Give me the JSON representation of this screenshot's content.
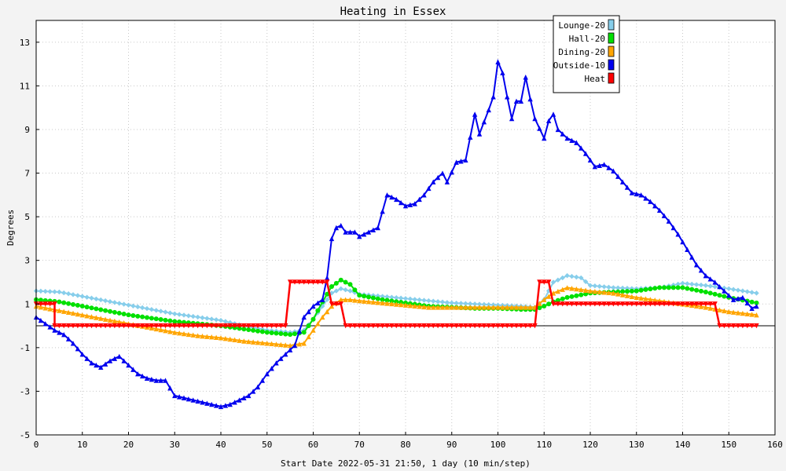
{
  "chart_data": {
    "type": "line",
    "title": "Heating in Essex",
    "xlabel": "Start Date 2022-05-31 21:50, 1 day (10 min/step)",
    "ylabel": "Degrees",
    "xlim": [
      0,
      160
    ],
    "ylim": [
      -5,
      14
    ],
    "x_ticks": [
      0,
      10,
      20,
      30,
      40,
      50,
      60,
      70,
      80,
      90,
      100,
      110,
      120,
      130,
      140,
      150,
      160
    ],
    "y_ticks": [
      -5,
      -3,
      -1,
      1,
      3,
      5,
      7,
      9,
      11,
      13
    ],
    "grid": true,
    "legend_position": "top-right",
    "series": [
      {
        "name": "Lounge-20",
        "color": "#87ceeb",
        "marker": "diamond",
        "points": [
          [
            0,
            1.6
          ],
          [
            5,
            1.55
          ],
          [
            10,
            1.35
          ],
          [
            15,
            1.15
          ],
          [
            20,
            0.95
          ],
          [
            25,
            0.75
          ],
          [
            30,
            0.55
          ],
          [
            35,
            0.4
          ],
          [
            40,
            0.25
          ],
          [
            45,
            0.0
          ],
          [
            50,
            -0.2
          ],
          [
            55,
            -0.3
          ],
          [
            58,
            -0.2
          ],
          [
            60,
            0.3
          ],
          [
            62,
            0.9
          ],
          [
            64,
            1.5
          ],
          [
            66,
            1.7
          ],
          [
            68,
            1.6
          ],
          [
            70,
            1.45
          ],
          [
            75,
            1.35
          ],
          [
            80,
            1.25
          ],
          [
            85,
            1.15
          ],
          [
            90,
            1.05
          ],
          [
            95,
            1.0
          ],
          [
            100,
            0.95
          ],
          [
            105,
            0.9
          ],
          [
            108,
            0.85
          ],
          [
            110,
            1.2
          ],
          [
            112,
            2.0
          ],
          [
            115,
            2.3
          ],
          [
            118,
            2.2
          ],
          [
            120,
            1.85
          ],
          [
            125,
            1.75
          ],
          [
            130,
            1.7
          ],
          [
            135,
            1.75
          ],
          [
            140,
            1.95
          ],
          [
            145,
            1.85
          ],
          [
            150,
            1.7
          ],
          [
            156,
            1.5
          ]
        ]
      },
      {
        "name": "Hall-20",
        "color": "#00e000",
        "marker": "circle",
        "points": [
          [
            0,
            1.2
          ],
          [
            5,
            1.1
          ],
          [
            10,
            0.9
          ],
          [
            15,
            0.7
          ],
          [
            20,
            0.5
          ],
          [
            25,
            0.35
          ],
          [
            30,
            0.2
          ],
          [
            35,
            0.1
          ],
          [
            40,
            0.0
          ],
          [
            45,
            -0.15
          ],
          [
            50,
            -0.3
          ],
          [
            55,
            -0.4
          ],
          [
            58,
            -0.3
          ],
          [
            60,
            0.3
          ],
          [
            62,
            1.1
          ],
          [
            64,
            1.8
          ],
          [
            66,
            2.1
          ],
          [
            68,
            1.9
          ],
          [
            70,
            1.4
          ],
          [
            75,
            1.2
          ],
          [
            80,
            1.05
          ],
          [
            85,
            0.9
          ],
          [
            90,
            0.85
          ],
          [
            95,
            0.8
          ],
          [
            100,
            0.8
          ],
          [
            105,
            0.75
          ],
          [
            108,
            0.75
          ],
          [
            110,
            0.9
          ],
          [
            112,
            1.1
          ],
          [
            115,
            1.3
          ],
          [
            120,
            1.5
          ],
          [
            125,
            1.55
          ],
          [
            130,
            1.6
          ],
          [
            135,
            1.75
          ],
          [
            140,
            1.75
          ],
          [
            145,
            1.55
          ],
          [
            150,
            1.3
          ],
          [
            156,
            1.05
          ]
        ]
      },
      {
        "name": "Dining-20",
        "color": "#ffa500",
        "marker": "triangle",
        "points": [
          [
            0,
            0.9
          ],
          [
            5,
            0.7
          ],
          [
            10,
            0.5
          ],
          [
            15,
            0.3
          ],
          [
            20,
            0.1
          ],
          [
            25,
            -0.1
          ],
          [
            30,
            -0.3
          ],
          [
            35,
            -0.45
          ],
          [
            40,
            -0.55
          ],
          [
            45,
            -0.7
          ],
          [
            50,
            -0.8
          ],
          [
            55,
            -0.9
          ],
          [
            58,
            -0.8
          ],
          [
            60,
            -0.2
          ],
          [
            62,
            0.4
          ],
          [
            64,
            0.9
          ],
          [
            66,
            1.2
          ],
          [
            68,
            1.2
          ],
          [
            70,
            1.15
          ],
          [
            75,
            1.05
          ],
          [
            80,
            0.95
          ],
          [
            85,
            0.85
          ],
          [
            90,
            0.85
          ],
          [
            95,
            0.85
          ],
          [
            100,
            0.85
          ],
          [
            105,
            0.85
          ],
          [
            108,
            0.85
          ],
          [
            110,
            1.2
          ],
          [
            112,
            1.5
          ],
          [
            115,
            1.75
          ],
          [
            120,
            1.6
          ],
          [
            125,
            1.5
          ],
          [
            130,
            1.3
          ],
          [
            135,
            1.15
          ],
          [
            140,
            1.0
          ],
          [
            145,
            0.85
          ],
          [
            150,
            0.65
          ],
          [
            156,
            0.5
          ]
        ]
      },
      {
        "name": "Outside-10",
        "color": "#0000ee",
        "marker": "triangle",
        "points": [
          [
            0,
            0.4
          ],
          [
            2,
            0.1
          ],
          [
            4,
            -0.2
          ],
          [
            6,
            -0.4
          ],
          [
            8,
            -0.8
          ],
          [
            10,
            -1.3
          ],
          [
            12,
            -1.7
          ],
          [
            14,
            -1.9
          ],
          [
            16,
            -1.6
          ],
          [
            18,
            -1.4
          ],
          [
            20,
            -1.8
          ],
          [
            22,
            -2.2
          ],
          [
            24,
            -2.4
          ],
          [
            26,
            -2.5
          ],
          [
            28,
            -2.5
          ],
          [
            30,
            -3.2
          ],
          [
            32,
            -3.3
          ],
          [
            34,
            -3.4
          ],
          [
            36,
            -3.5
          ],
          [
            38,
            -3.6
          ],
          [
            40,
            -3.7
          ],
          [
            42,
            -3.6
          ],
          [
            44,
            -3.4
          ],
          [
            46,
            -3.2
          ],
          [
            48,
            -2.8
          ],
          [
            50,
            -2.2
          ],
          [
            52,
            -1.7
          ],
          [
            54,
            -1.3
          ],
          [
            56,
            -0.9
          ],
          [
            58,
            0.4
          ],
          [
            60,
            0.9
          ],
          [
            62,
            1.2
          ],
          [
            63,
            2.2
          ],
          [
            64,
            4.0
          ],
          [
            65,
            4.5
          ],
          [
            66,
            4.6
          ],
          [
            67,
            4.3
          ],
          [
            69,
            4.3
          ],
          [
            70,
            4.1
          ],
          [
            72,
            4.3
          ],
          [
            74,
            4.5
          ],
          [
            76,
            6.0
          ],
          [
            78,
            5.8
          ],
          [
            80,
            5.5
          ],
          [
            82,
            5.6
          ],
          [
            84,
            6.0
          ],
          [
            86,
            6.6
          ],
          [
            88,
            7.0
          ],
          [
            89,
            6.6
          ],
          [
            91,
            7.5
          ],
          [
            93,
            7.6
          ],
          [
            95,
            9.7
          ],
          [
            96,
            8.8
          ],
          [
            98,
            9.9
          ],
          [
            99,
            10.5
          ],
          [
            100,
            12.1
          ],
          [
            101,
            11.6
          ],
          [
            102,
            10.5
          ],
          [
            103,
            9.5
          ],
          [
            104,
            10.3
          ],
          [
            105,
            10.3
          ],
          [
            106,
            11.4
          ],
          [
            107,
            10.4
          ],
          [
            108,
            9.5
          ],
          [
            110,
            8.6
          ],
          [
            111,
            9.4
          ],
          [
            112,
            9.7
          ],
          [
            113,
            9.0
          ],
          [
            115,
            8.6
          ],
          [
            117,
            8.4
          ],
          [
            119,
            7.9
          ],
          [
            121,
            7.3
          ],
          [
            123,
            7.4
          ],
          [
            125,
            7.1
          ],
          [
            127,
            6.6
          ],
          [
            129,
            6.1
          ],
          [
            131,
            6.0
          ],
          [
            133,
            5.7
          ],
          [
            135,
            5.3
          ],
          [
            137,
            4.8
          ],
          [
            139,
            4.2
          ],
          [
            141,
            3.5
          ],
          [
            143,
            2.8
          ],
          [
            145,
            2.3
          ],
          [
            147,
            2.0
          ],
          [
            149,
            1.6
          ],
          [
            151,
            1.2
          ],
          [
            153,
            1.3
          ],
          [
            155,
            0.8
          ],
          [
            156,
            0.9
          ]
        ]
      },
      {
        "name": "Heat",
        "color": "#ff0000",
        "marker": "triangle-down",
        "points": [
          [
            0,
            1.0
          ],
          [
            4,
            1.0
          ],
          [
            4,
            0.0
          ],
          [
            54,
            0.0
          ],
          [
            55,
            2.0
          ],
          [
            63,
            2.0
          ],
          [
            64,
            1.0
          ],
          [
            66,
            1.0
          ],
          [
            67,
            0.0
          ],
          [
            108,
            0.0
          ],
          [
            109,
            2.0
          ],
          [
            111,
            2.0
          ],
          [
            112,
            1.0
          ],
          [
            147,
            1.0
          ],
          [
            148,
            0.0
          ],
          [
            156,
            0.0
          ]
        ]
      }
    ]
  }
}
